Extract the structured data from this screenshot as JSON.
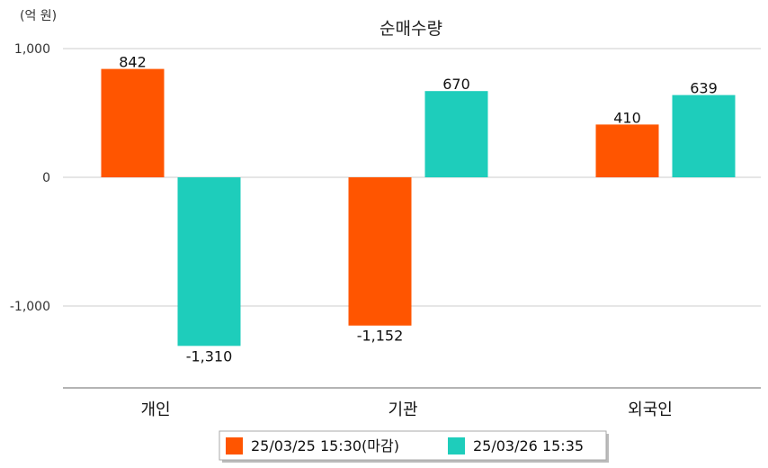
{
  "chart_data": {
    "type": "bar",
    "title": "순매수량",
    "unit_label": "(억 원)",
    "categories": [
      "개인",
      "기관",
      "외국인"
    ],
    "series": [
      {
        "name": "25/03/25 15:30(마감)",
        "color": "#ff5500",
        "values": [
          842,
          -1152,
          410
        ],
        "labels": [
          "842",
          "-1,152",
          "410"
        ]
      },
      {
        "name": "25/03/26 15:35",
        "color": "#1ecdbb",
        "values": [
          -1310,
          670,
          639
        ],
        "labels": [
          "-1,310",
          "670",
          "639"
        ]
      }
    ],
    "yticks": [
      1000,
      0,
      -1000
    ],
    "ytick_labels": [
      "1,000",
      "0",
      "-1,000"
    ],
    "ylim": [
      -1630,
      1000
    ],
    "grid": true,
    "legend_position": "bottom"
  }
}
